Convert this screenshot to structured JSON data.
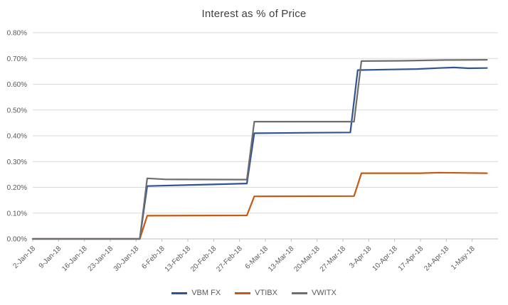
{
  "chart_data": {
    "type": "line",
    "title": "Interest as % of Price",
    "xlabel": "",
    "ylabel": "",
    "grid": "horizontal",
    "legend_position": "bottom",
    "x_unit": "days since 2-Jan-18",
    "x_range": [
      0,
      126
    ],
    "y_range": [
      0,
      0.8
    ],
    "y_ticks": {
      "values": [
        0,
        0.1,
        0.2,
        0.3,
        0.4,
        0.5,
        0.6,
        0.7,
        0.8
      ],
      "labels": [
        "0.00%",
        "0.10%",
        "0.20%",
        "0.30%",
        "0.40%",
        "0.50%",
        "0.60%",
        "0.70%",
        "0.80%"
      ]
    },
    "x_ticks": {
      "days": [
        0,
        7,
        14,
        21,
        28,
        35,
        42,
        49,
        56,
        63,
        70,
        77,
        84,
        91,
        98,
        105,
        112,
        119
      ],
      "labels": [
        "2-Jan-18",
        "9-Jan-18",
        "16-Jan-18",
        "23-Jan-18",
        "30-Jan-18",
        "6-Feb-18",
        "13-Feb-18",
        "20-Feb-18",
        "27-Feb-18",
        "6-Mar-18",
        "13-Mar-18",
        "20-Mar-18",
        "27-Mar-18",
        "3-Apr-18",
        "10-Apr-18",
        "17-Apr-18",
        "24-Apr-18",
        "1-May-18"
      ]
    },
    "colors": {
      "gridline": "#D9D9D9",
      "axis_line": "#BFBFBF",
      "axis_text": "#595959",
      "title_text": "#3F3F3F"
    },
    "series": [
      {
        "name": "VBM FX",
        "color": "#2F5496",
        "points": [
          [
            0,
            0
          ],
          [
            29,
            0
          ],
          [
            31,
            0.205
          ],
          [
            45,
            0.21
          ],
          [
            58,
            0.215
          ],
          [
            60,
            0.41
          ],
          [
            75,
            0.412
          ],
          [
            86,
            0.413
          ],
          [
            88,
            0.655
          ],
          [
            96,
            0.657
          ],
          [
            104,
            0.659
          ],
          [
            110,
            0.663
          ],
          [
            114,
            0.665
          ],
          [
            118,
            0.662
          ],
          [
            123,
            0.663
          ]
        ]
      },
      {
        "name": "VTIBX",
        "color": "#C55A11",
        "points": [
          [
            0,
            0
          ],
          [
            29,
            0
          ],
          [
            31,
            0.09
          ],
          [
            58,
            0.091
          ],
          [
            60,
            0.165
          ],
          [
            87,
            0.166
          ],
          [
            89,
            0.255
          ],
          [
            105,
            0.255
          ],
          [
            110,
            0.257
          ],
          [
            116,
            0.256
          ],
          [
            123,
            0.255
          ]
        ]
      },
      {
        "name": "VWITX",
        "color": "#6E6E6E",
        "points": [
          [
            0,
            0
          ],
          [
            29,
            0
          ],
          [
            31,
            0.235
          ],
          [
            36,
            0.231
          ],
          [
            58,
            0.23
          ],
          [
            60,
            0.455
          ],
          [
            87,
            0.455
          ],
          [
            89,
            0.69
          ],
          [
            100,
            0.691
          ],
          [
            112,
            0.694
          ],
          [
            123,
            0.695
          ]
        ]
      }
    ]
  }
}
